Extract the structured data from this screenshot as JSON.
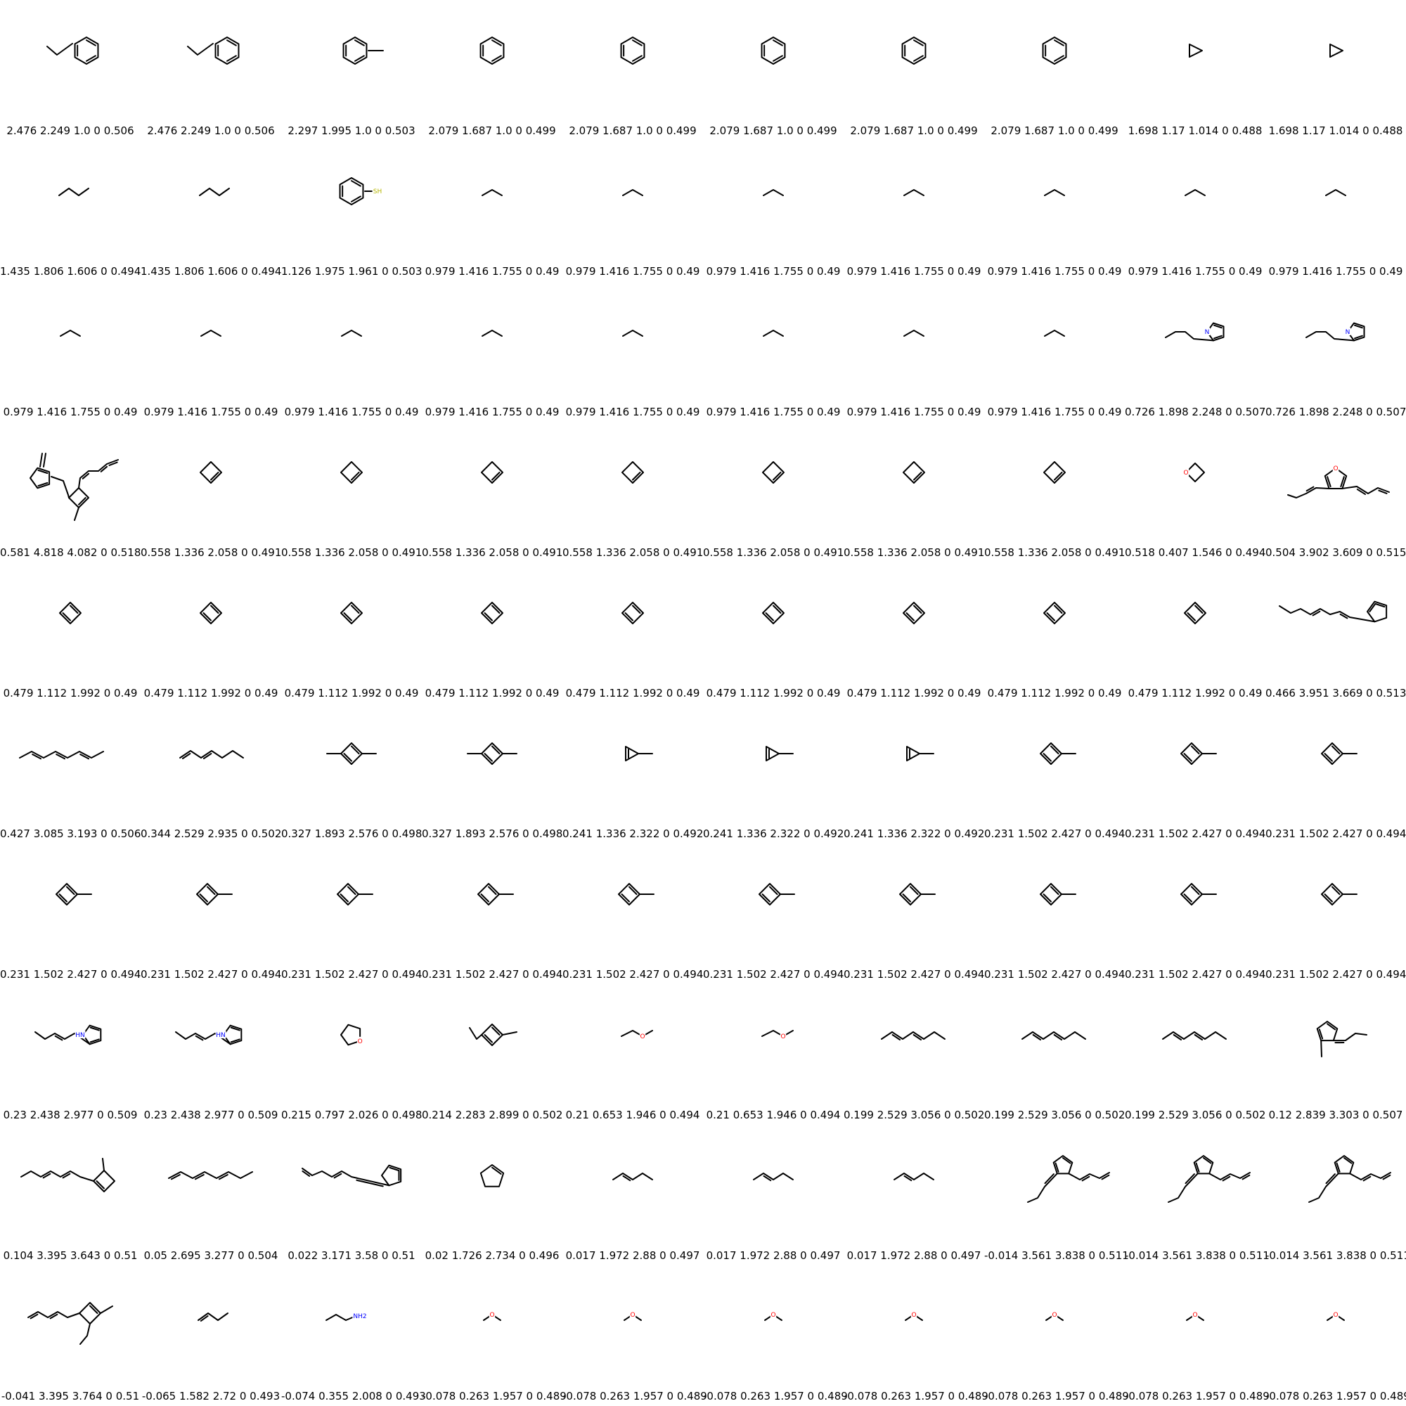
{
  "grid": {
    "molecules": [
      {
        "shape": "ethylbenzene",
        "label": "2.476 2.249 1.0 0 0.506"
      },
      {
        "shape": "ethylbenzene",
        "label": "2.476 2.249 1.0 0 0.506"
      },
      {
        "shape": "toluene",
        "label": "2.297 1.995 1.0 0 0.503"
      },
      {
        "shape": "benzene",
        "label": "2.079 1.687 1.0 0 0.499"
      },
      {
        "shape": "benzene",
        "label": "2.079 1.687 1.0 0 0.499"
      },
      {
        "shape": "benzene",
        "label": "2.079 1.687 1.0 0 0.499"
      },
      {
        "shape": "benzene",
        "label": "2.079 1.687 1.0 0 0.499"
      },
      {
        "shape": "benzene",
        "label": "2.079 1.687 1.0 0 0.499"
      },
      {
        "shape": "cyclopropane",
        "label": "1.698 1.17 1.014 0 0.488"
      },
      {
        "shape": "cyclopropane",
        "label": "1.698 1.17 1.014 0 0.488"
      },
      {
        "shape": "butane",
        "label": "1.435 1.806 1.606 0 0.494"
      },
      {
        "shape": "butane",
        "label": "1.435 1.806 1.606 0 0.494"
      },
      {
        "shape": "thiophenol",
        "label": "1.126 1.975 1.961 0 0.503",
        "atom": "SH"
      },
      {
        "shape": "propane",
        "label": "0.979 1.416 1.755 0 0.49"
      },
      {
        "shape": "propane",
        "label": "0.979 1.416 1.755 0 0.49"
      },
      {
        "shape": "propane",
        "label": "0.979 1.416 1.755 0 0.49"
      },
      {
        "shape": "propane",
        "label": "0.979 1.416 1.755 0 0.49"
      },
      {
        "shape": "propane",
        "label": "0.979 1.416 1.755 0 0.49"
      },
      {
        "shape": "propane",
        "label": "0.979 1.416 1.755 0 0.49"
      },
      {
        "shape": "propane",
        "label": "0.979 1.416 1.755 0 0.49"
      },
      {
        "shape": "propane",
        "label": "0.979 1.416 1.755 0 0.49"
      },
      {
        "shape": "propane",
        "label": "0.979 1.416 1.755 0 0.49"
      },
      {
        "shape": "propane",
        "label": "0.979 1.416 1.755 0 0.49"
      },
      {
        "shape": "propane",
        "label": "0.979 1.416 1.755 0 0.49"
      },
      {
        "shape": "propane",
        "label": "0.979 1.416 1.755 0 0.49"
      },
      {
        "shape": "propane",
        "label": "0.979 1.416 1.755 0 0.49"
      },
      {
        "shape": "propane",
        "label": "0.979 1.416 1.755 0 0.49"
      },
      {
        "shape": "propane",
        "label": "0.979 1.416 1.755 0 0.49"
      },
      {
        "shape": "propylpyrrole",
        "label": "0.726 1.898 2.248 0 0.507",
        "atom": "N"
      },
      {
        "shape": "propylpyrrole",
        "label": "0.726 1.898 2.248 0 0.507",
        "atom": "N"
      },
      {
        "shape": "complex-cb-cp",
        "label": "0.581 4.818 4.082 0 0.518"
      },
      {
        "shape": "cyclobutene",
        "label": "0.558 1.336 2.058 0 0.491"
      },
      {
        "shape": "cyclobutene",
        "label": "0.558 1.336 2.058 0 0.491"
      },
      {
        "shape": "cyclobutene",
        "label": "0.558 1.336 2.058 0 0.491"
      },
      {
        "shape": "cyclobutene",
        "label": "0.558 1.336 2.058 0 0.491"
      },
      {
        "shape": "cyclobutene",
        "label": "0.558 1.336 2.058 0 0.491"
      },
      {
        "shape": "cyclobutene",
        "label": "0.558 1.336 2.058 0 0.491"
      },
      {
        "shape": "cyclobutene",
        "label": "0.558 1.336 2.058 0 0.491"
      },
      {
        "shape": "oxetane",
        "label": "0.518 0.407 1.546 0 0.494",
        "atom": "O"
      },
      {
        "shape": "furan-diene",
        "label": "0.504 3.902 3.609 0 0.515",
        "atom": "O"
      },
      {
        "shape": "cyclobutadiene",
        "label": "0.479 1.112 1.992 0 0.49"
      },
      {
        "shape": "cyclobutadiene",
        "label": "0.479 1.112 1.992 0 0.49"
      },
      {
        "shape": "cyclobutadiene",
        "label": "0.479 1.112 1.992 0 0.49"
      },
      {
        "shape": "cyclobutadiene",
        "label": "0.479 1.112 1.992 0 0.49"
      },
      {
        "shape": "cyclobutadiene",
        "label": "0.479 1.112 1.992 0 0.49"
      },
      {
        "shape": "cyclobutadiene",
        "label": "0.479 1.112 1.992 0 0.49"
      },
      {
        "shape": "cyclobutadiene",
        "label": "0.479 1.112 1.992 0 0.49"
      },
      {
        "shape": "cyclobutadiene",
        "label": "0.479 1.112 1.992 0 0.49"
      },
      {
        "shape": "cyclobutadiene",
        "label": "0.479 1.112 1.992 0 0.49"
      },
      {
        "shape": "chain-fulvene",
        "label": "0.466 3.951 3.669 0 0.513"
      },
      {
        "shape": "octatriene",
        "label": "0.427 3.085 3.193 0 0.506"
      },
      {
        "shape": "heptadiene",
        "label": "0.344 2.529 2.935 0 0.502"
      },
      {
        "shape": "dimethylcyclobutadiene",
        "label": "0.327 1.893 2.576 0 0.498"
      },
      {
        "shape": "dimethylcyclobutadiene",
        "label": "0.327 1.893 2.576 0 0.498"
      },
      {
        "shape": "methylcyclopropene",
        "label": "0.241 1.336 2.322 0 0.492"
      },
      {
        "shape": "methylcyclopropene",
        "label": "0.241 1.336 2.322 0 0.492"
      },
      {
        "shape": "methylcyclopropene",
        "label": "0.241 1.336 2.322 0 0.492"
      },
      {
        "shape": "methylcyclobutadiene",
        "label": "0.231 1.502 2.427 0 0.494"
      },
      {
        "shape": "methylcyclobutadiene",
        "label": "0.231 1.502 2.427 0 0.494"
      },
      {
        "shape": "methylcyclobutadiene",
        "label": "0.231 1.502 2.427 0 0.494"
      },
      {
        "shape": "methylcyclobutadiene",
        "label": "0.231 1.502 2.427 0 0.494"
      },
      {
        "shape": "methylcyclobutadiene",
        "label": "0.231 1.502 2.427 0 0.494"
      },
      {
        "shape": "methylcyclobutadiene",
        "label": "0.231 1.502 2.427 0 0.494"
      },
      {
        "shape": "methylcyclobutadiene",
        "label": "0.231 1.502 2.427 0 0.494"
      },
      {
        "shape": "methylcyclobutadiene",
        "label": "0.231 1.502 2.427 0 0.494"
      },
      {
        "shape": "methylcyclobutadiene",
        "label": "0.231 1.502 2.427 0 0.494"
      },
      {
        "shape": "methylcyclobutadiene",
        "label": "0.231 1.502 2.427 0 0.494"
      },
      {
        "shape": "methylcyclobutadiene",
        "label": "0.231 1.502 2.427 0 0.494"
      },
      {
        "shape": "methylcyclobutadiene",
        "label": "0.231 1.502 2.427 0 0.494"
      },
      {
        "shape": "methylcyclobutadiene",
        "label": "0.231 1.502 2.427 0 0.494"
      },
      {
        "shape": "butenylpyrrole",
        "label": "0.23 2.438 2.977 0 0.509",
        "atom": "HN"
      },
      {
        "shape": "butenylpyrrole",
        "label": "0.23 2.438 2.977 0 0.509",
        "atom": "HN"
      },
      {
        "shape": "thf",
        "label": "0.215 0.797 2.026 0 0.498",
        "atom": "O"
      },
      {
        "shape": "ethylmethylcyclobutadiene",
        "label": "0.214 2.283 2.899 0 0.502"
      },
      {
        "shape": "ethylmethylether",
        "label": "0.21 0.653 1.946 0 0.494",
        "atom": "O"
      },
      {
        "shape": "ethylmethylether",
        "label": "0.21 0.653 1.946 0 0.494",
        "atom": "O"
      },
      {
        "shape": "heptadiene2",
        "label": "0.199 2.529 3.056 0 0.502"
      },
      {
        "shape": "heptadiene2",
        "label": "0.199 2.529 3.056 0 0.502"
      },
      {
        "shape": "heptadiene2",
        "label": "0.199 2.529 3.056 0 0.502"
      },
      {
        "shape": "propylidene-methylcp",
        "label": "0.12 2.839 3.303 0 0.507"
      },
      {
        "shape": "chain-cyclobutene",
        "label": "0.104 3.395 3.643 0 0.51"
      },
      {
        "shape": "octatriene2",
        "label": "0.05 2.695 3.277 0 0.504"
      },
      {
        "shape": "diene-fulvene",
        "label": "0.022 3.171 3.58 0 0.51"
      },
      {
        "shape": "cyclopentene",
        "label": "0.02 1.726 2.734 0 0.496"
      },
      {
        "shape": "pentene",
        "label": "0.017 1.972 2.88 0 0.497"
      },
      {
        "shape": "pentene",
        "label": "0.017 1.972 2.88 0 0.497"
      },
      {
        "shape": "pentene",
        "label": "0.017 1.972 2.88 0 0.497"
      },
      {
        "shape": "cp-diene-propylidene",
        "label": "-0.014 3.561 3.838 0 0.511"
      },
      {
        "shape": "cp-diene-propylidene",
        "label": "-0.014 3.561 3.838 0 0.511"
      },
      {
        "shape": "cp-diene-propylidene",
        "label": "-0.014 3.561 3.838 0 0.511"
      },
      {
        "shape": "diene-cyclobutene",
        "label": "-0.041 3.395 3.764 0 0.51"
      },
      {
        "shape": "butene",
        "label": "-0.065 1.582 2.72 0 0.493"
      },
      {
        "shape": "propylamine",
        "label": "-0.074 0.355 2.008 0 0.493",
        "atom": "NH2"
      },
      {
        "shape": "dimethylether",
        "label": "-0.078 0.263 1.957 0 0.489",
        "atom": "O"
      },
      {
        "shape": "dimethylether",
        "label": "-0.078 0.263 1.957 0 0.489",
        "atom": "O"
      },
      {
        "shape": "dimethylether",
        "label": "-0.078 0.263 1.957 0 0.489",
        "atom": "O"
      },
      {
        "shape": "dimethylether",
        "label": "-0.078 0.263 1.957 0 0.489",
        "atom": "O"
      },
      {
        "shape": "dimethylether",
        "label": "-0.078 0.263 1.957 0 0.489",
        "atom": "O"
      },
      {
        "shape": "dimethylether",
        "label": "-0.078 0.263 1.957 0 0.489",
        "atom": "O"
      },
      {
        "shape": "dimethylether",
        "label": "-0.078 0.263 1.957 0 0.489",
        "atom": "O"
      }
    ]
  },
  "colors": {
    "bond": "#000000",
    "oxygen": "#ff0000",
    "nitrogen": "#0000ff",
    "sulfur": "#b5b500"
  }
}
